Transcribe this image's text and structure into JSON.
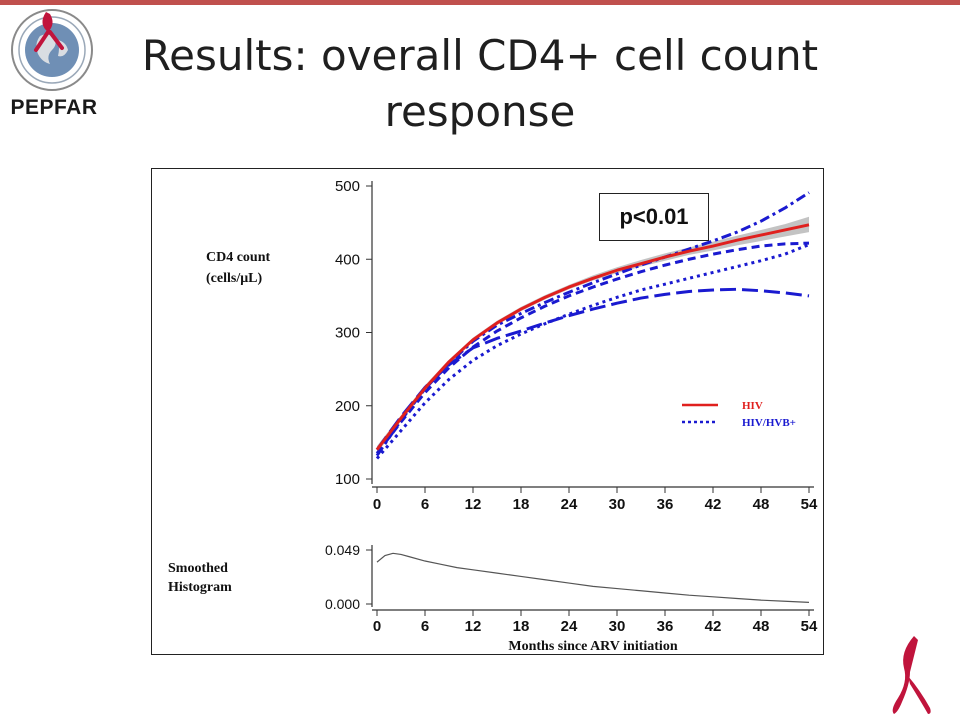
{
  "slide": {
    "title": "Results: overall CD4+ cell count response",
    "logo_text": "PEPFAR",
    "annotation": "p<0.01"
  },
  "colors": {
    "top_bar": "#c0504d",
    "hiv": "#e0201e",
    "hiv_hvb": "#1a1ad0",
    "ci_band": "#b8b8b8",
    "ribbon": "#c0143c"
  },
  "chart_data": [
    {
      "type": "line",
      "ylabel_line1": "CD4 count",
      "ylabel_line2": "(cells/μL)",
      "xlim": [
        0,
        54
      ],
      "ylim": [
        100,
        500
      ],
      "x_ticks": [
        0,
        6,
        12,
        18,
        24,
        30,
        36,
        42,
        48,
        54
      ],
      "y_ticks": [
        100,
        200,
        300,
        400,
        500
      ],
      "legend": {
        "placement": "right",
        "entries": [
          "HIV",
          "HIV/HVB+"
        ]
      },
      "series": [
        {
          "name": "HIV",
          "style": "solid",
          "x": [
            0,
            3,
            6,
            9,
            12,
            15,
            18,
            21,
            24,
            27,
            30,
            33,
            36,
            39,
            42,
            45,
            48,
            51,
            54
          ],
          "y": [
            140,
            183,
            224,
            260,
            290,
            313,
            332,
            348,
            362,
            374,
            385,
            394,
            403,
            411,
            418,
            426,
            433,
            440,
            447
          ],
          "ci_upper": [
            145,
            187,
            228,
            263,
            293,
            316,
            335,
            351,
            365,
            378,
            389,
            399,
            408,
            416,
            424,
            432,
            440,
            448,
            458
          ],
          "ci_lower": [
            135,
            179,
            220,
            257,
            287,
            310,
            329,
            345,
            359,
            371,
            381,
            390,
            398,
            406,
            412,
            419,
            425,
            431,
            437
          ]
        },
        {
          "name": "HIV/HVB+",
          "style": "dash-dot",
          "x": [
            0,
            3,
            6,
            9,
            12,
            15,
            18,
            21,
            24,
            27,
            30,
            33,
            36,
            39,
            42,
            45,
            48,
            51,
            54
          ],
          "y": [
            132,
            180,
            223,
            258,
            288,
            310,
            326,
            341,
            355,
            368,
            380,
            392,
            403,
            414,
            425,
            437,
            452,
            470,
            491
          ]
        },
        {
          "style": "dashed",
          "x": [
            0,
            3,
            6,
            9,
            12,
            15,
            18,
            21,
            24,
            27,
            30,
            33,
            36,
            39,
            42,
            45,
            48,
            51,
            54
          ],
          "y": [
            135,
            178,
            218,
            252,
            280,
            302,
            320,
            336,
            350,
            362,
            373,
            383,
            392,
            400,
            407,
            413,
            418,
            421,
            422
          ]
        },
        {
          "style": "dotted",
          "x": [
            0,
            3,
            6,
            9,
            12,
            15,
            18,
            21,
            24,
            27,
            30,
            33,
            36,
            39,
            42,
            45,
            48,
            51,
            54
          ],
          "y": [
            128,
            166,
            204,
            236,
            262,
            282,
            298,
            312,
            325,
            337,
            348,
            358,
            366,
            374,
            382,
            390,
            398,
            407,
            420
          ]
        },
        {
          "style": "long-dash",
          "x": [
            0,
            3,
            6,
            9,
            12,
            15,
            18,
            21,
            24,
            27,
            30,
            33,
            36,
            39,
            42,
            45,
            48,
            51,
            54
          ],
          "y": [
            140,
            185,
            225,
            256,
            279,
            292,
            302,
            313,
            323,
            332,
            340,
            347,
            352,
            356,
            358,
            359,
            357,
            354,
            350
          ]
        }
      ]
    },
    {
      "type": "area",
      "ylabel_line1": "Smoothed",
      "ylabel_line2": "Histogram",
      "xlabel": "Months since ARV initiation",
      "xlim": [
        0,
        54
      ],
      "ylim": [
        0,
        0.049
      ],
      "x_ticks": [
        0,
        6,
        12,
        18,
        24,
        30,
        36,
        42,
        48,
        54
      ],
      "y_tick_labels": [
        "0.000",
        "0.049"
      ],
      "series": [
        {
          "x": [
            0,
            1,
            2,
            3,
            4,
            6,
            8,
            10,
            12,
            15,
            18,
            21,
            24,
            27,
            30,
            33,
            36,
            39,
            42,
            45,
            48,
            51,
            54
          ],
          "y": [
            0.038,
            0.044,
            0.046,
            0.045,
            0.043,
            0.039,
            0.036,
            0.033,
            0.031,
            0.028,
            0.025,
            0.022,
            0.019,
            0.016,
            0.014,
            0.012,
            0.01,
            0.008,
            0.0065,
            0.005,
            0.0035,
            0.0025,
            0.0015
          ]
        }
      ]
    }
  ]
}
